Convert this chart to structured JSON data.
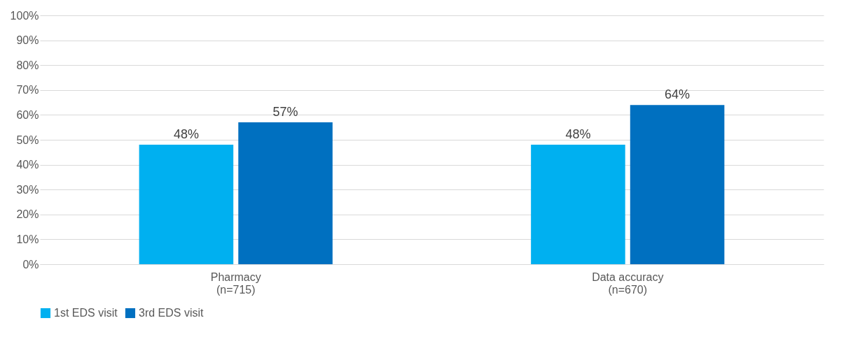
{
  "chart_data": {
    "type": "bar",
    "categories": [
      "Pharmacy\n(n=715)",
      "Data accuracy\n(n=670)"
    ],
    "series": [
      {
        "name": "1st EDS visit",
        "color": "#00b0f0",
        "values": [
          48,
          48
        ],
        "value_labels": [
          "48%",
          "48%"
        ]
      },
      {
        "name": "3rd EDS visit",
        "color": "#0070c0",
        "values": [
          57,
          64
        ],
        "value_labels": [
          "57%",
          "64%"
        ]
      }
    ],
    "ylim": [
      0,
      100
    ],
    "yticks": [
      {
        "value": 0,
        "label": "0%"
      },
      {
        "value": 10,
        "label": "10%"
      },
      {
        "value": 20,
        "label": "20%"
      },
      {
        "value": 30,
        "label": "30%"
      },
      {
        "value": 40,
        "label": "40%"
      },
      {
        "value": 50,
        "label": "50%"
      },
      {
        "value": 60,
        "label": "60%"
      },
      {
        "value": 70,
        "label": "70%"
      },
      {
        "value": 80,
        "label": "80%"
      },
      {
        "value": 90,
        "label": "90%"
      },
      {
        "value": 100,
        "label": "100%"
      }
    ],
    "grid": "y",
    "legend": "bottom"
  }
}
